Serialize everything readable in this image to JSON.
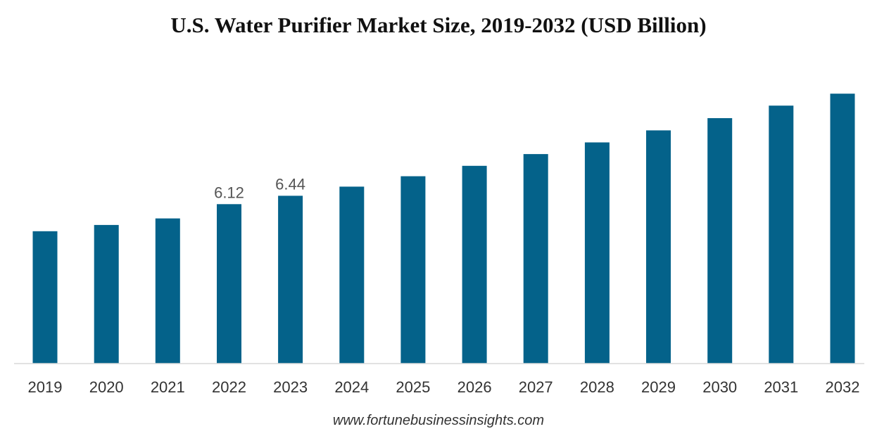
{
  "chart_data": {
    "type": "bar",
    "title": "U.S. Water Purifier Market Size, 2019-2032 (USD Billion)",
    "xlabel": "",
    "ylabel": "",
    "ylim": [
      0,
      10.5
    ],
    "grid": false,
    "legend": "none",
    "categories": [
      "2019",
      "2020",
      "2021",
      "2022",
      "2023",
      "2024",
      "2025",
      "2026",
      "2027",
      "2028",
      "2029",
      "2030",
      "2031",
      "2032"
    ],
    "values": [
      5.08,
      5.32,
      5.57,
      6.12,
      6.44,
      6.79,
      7.19,
      7.59,
      8.04,
      8.49,
      8.95,
      9.42,
      9.9,
      10.36
    ],
    "data_labels": [
      null,
      null,
      null,
      "6.12",
      "6.44",
      null,
      null,
      null,
      null,
      null,
      null,
      null,
      null,
      null
    ],
    "bar_color": "#04628A",
    "axis_color": "#D9D9D9"
  },
  "source": "www.fortunebusinessinsights.com"
}
